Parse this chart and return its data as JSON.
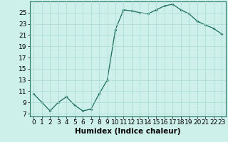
{
  "title": "",
  "xlabel": "Humidex (Indice chaleur)",
  "ylabel": "",
  "x_values": [
    0,
    1,
    2,
    3,
    4,
    5,
    6,
    7,
    8,
    9,
    10,
    11,
    12,
    13,
    14,
    15,
    16,
    17,
    18,
    19,
    20,
    21,
    22,
    23
  ],
  "y_values": [
    10.5,
    9.0,
    7.5,
    9.0,
    10.0,
    8.5,
    7.5,
    7.8,
    10.5,
    13.0,
    22.0,
    25.5,
    25.3,
    25.0,
    24.8,
    25.5,
    26.2,
    26.5,
    25.5,
    24.8,
    23.5,
    22.8,
    22.2,
    21.2
  ],
  "ylim": [
    6.5,
    27.0
  ],
  "xlim": [
    -0.5,
    23.5
  ],
  "yticks": [
    7,
    9,
    11,
    13,
    15,
    17,
    19,
    21,
    23,
    25
  ],
  "xticks": [
    0,
    1,
    2,
    3,
    4,
    5,
    6,
    7,
    8,
    9,
    10,
    11,
    12,
    13,
    14,
    15,
    16,
    17,
    18,
    19,
    20,
    21,
    22,
    23
  ],
  "line_color": "#1a6b5a",
  "marker": "D",
  "marker_size": 2.0,
  "bg_color": "#cdf0eb",
  "grid_color": "#aad8d3",
  "xlabel_fontsize": 7.5,
  "tick_fontsize": 6.5
}
